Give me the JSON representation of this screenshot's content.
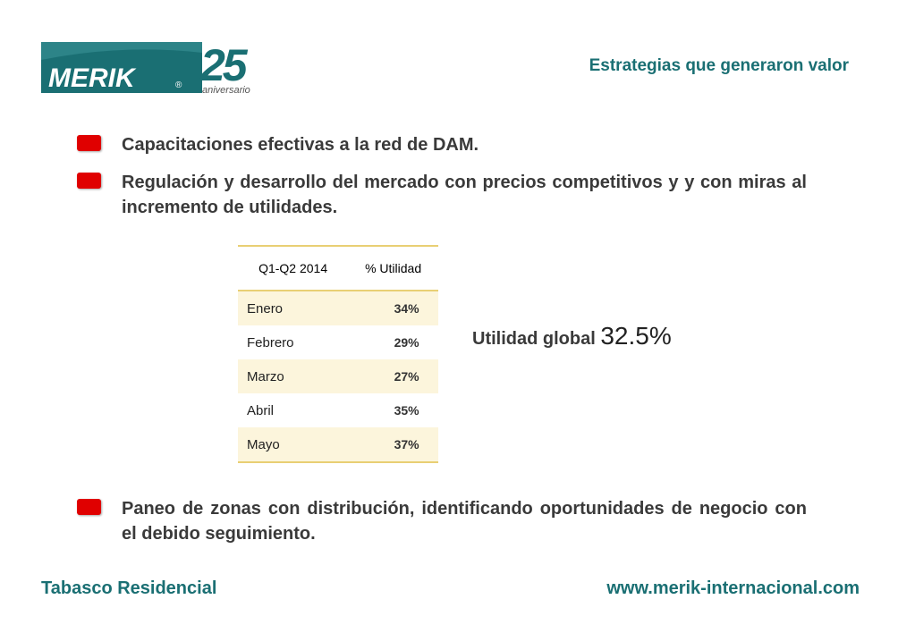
{
  "logo": {
    "brand": "MERIK",
    "registered": "®",
    "anniversary_number": "25",
    "anniversary_word": "aniversario",
    "color": "#1a6f73"
  },
  "header": {
    "title": "Estrategias que generaron valor"
  },
  "bullets_top": [
    {
      "text": "Capacitaciones efectivas a la red de DAM."
    },
    {
      "text": "Regulación y desarrollo del mercado con precios competitivos y y con miras al incremento de utilidades."
    }
  ],
  "table": {
    "headers": [
      "Q1-Q2 2014",
      "% Utilidad"
    ],
    "rows": [
      {
        "month": "Enero",
        "value": "34%"
      },
      {
        "month": "Febrero",
        "value": "29%"
      },
      {
        "month": "Marzo",
        "value": "27%"
      },
      {
        "month": "Abril",
        "value": "35%"
      },
      {
        "month": "Mayo",
        "value": "37%"
      }
    ]
  },
  "global": {
    "label": "Utilidad global",
    "value": "32.5%"
  },
  "bullets_bottom": [
    {
      "text": "Paneo de zonas con distribución, identificando oportunidades de negocio con el debido seguimiento."
    }
  ],
  "footer": {
    "left": "Tabasco Residencial",
    "right": "www.merik-internacional.com"
  },
  "colors": {
    "accent": "#1a6f73",
    "bullet": "#e00000",
    "table_border": "#e9cf74",
    "table_shade": "#fcf5dc"
  }
}
